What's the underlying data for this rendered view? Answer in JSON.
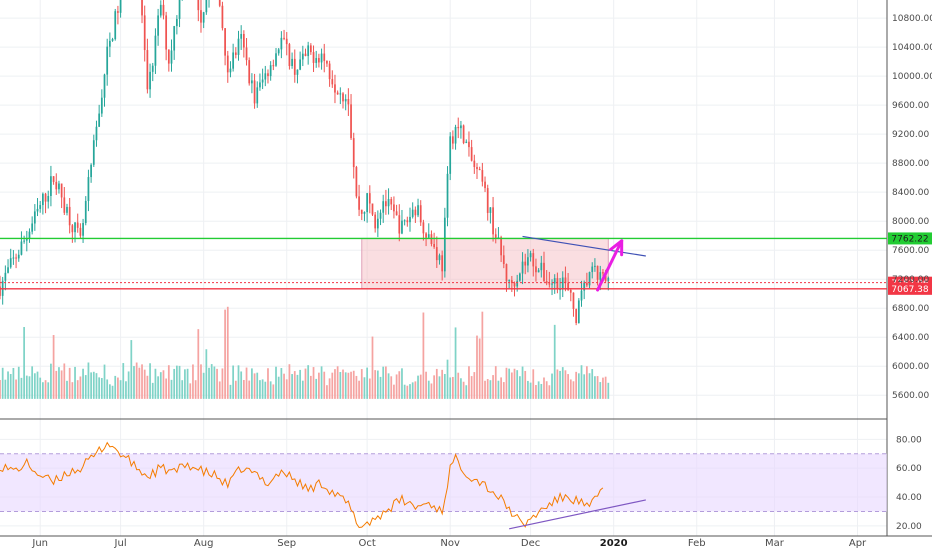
{
  "chart_data": [
    {
      "type": "candlestick",
      "title": "",
      "ylim": [
        5300,
        11050
      ],
      "price_ticks": [
        "5600.00",
        "6000.00",
        "6400.00",
        "6800.00",
        "7200.00",
        "7600.00",
        "8000.00",
        "8400.00",
        "8800.00",
        "9200.00",
        "9600.00",
        "10000.00",
        "10400.00",
        "10800.00"
      ],
      "price_tick_values": [
        5600,
        6000,
        6400,
        6800,
        7200,
        7600,
        8000,
        8400,
        8800,
        9200,
        9600,
        10000,
        10400,
        10800
      ],
      "x_labels": [
        "Jun",
        "Jul",
        "Aug",
        "Sep",
        "Oct",
        "Nov",
        "Dec",
        "2020",
        "Feb",
        "Mar",
        "Apr"
      ],
      "x_label_days": [
        0,
        30,
        61,
        92,
        122,
        153,
        183,
        214,
        245,
        274,
        305
      ],
      "range": {
        "start_day": -15,
        "end_day": 316
      },
      "drawn_to_day": 212,
      "price_path_days": [
        -15,
        -5,
        5,
        15,
        25,
        30,
        35,
        40,
        45,
        48,
        55,
        60,
        65,
        70,
        75,
        80,
        85,
        90,
        95,
        100,
        105,
        110,
        115,
        118,
        120,
        122,
        125,
        128,
        135,
        140,
        145,
        150,
        153,
        155,
        158,
        160,
        165,
        170,
        175,
        180,
        183,
        185,
        190,
        195,
        200,
        205,
        210,
        212
      ],
      "price_path_values": [
        7100,
        7800,
        8600,
        7700,
        10300,
        11100,
        12500,
        9700,
        11000,
        10200,
        11800,
        10800,
        11600,
        10100,
        10500,
        9700,
        10100,
        10500,
        10100,
        10300,
        10300,
        9900,
        9700,
        8300,
        8100,
        8300,
        8000,
        8300,
        7900,
        8200,
        7800,
        7400,
        9100,
        9300,
        9200,
        8900,
        8500,
        7800,
        7100,
        7400,
        7500,
        7400,
        7150,
        7200,
        6700,
        7300,
        7200,
        7152
      ],
      "volume": {
        "min": 0,
        "max": 200,
        "bottom_value": 5550
      },
      "horizontal_levels": [
        {
          "label": "7762.22",
          "value": 7762.22,
          "color": "#22cc33"
        },
        {
          "label": "7152.06",
          "value": 7152.06,
          "color": "#f23645"
        },
        {
          "label": "7067.38",
          "value": 7067.38,
          "color": "#f23645"
        }
      ],
      "support_zone": {
        "from_day": 120,
        "to_day": 212,
        "low": 7067.38,
        "high": 7762.22,
        "color": "#f4b6bd"
      },
      "trendline": {
        "start_day": 180,
        "start_value": 7790,
        "end_day": 226,
        "end_value": 7520,
        "color": "#3f51b5"
      },
      "projection_arrow": {
        "start_day": 208,
        "start_value": 7050,
        "end_day": 217,
        "end_value": 7730,
        "color": "#e91ee3"
      },
      "colors": {
        "up": "#26a69a",
        "down": "#ef5350",
        "up_volume": "#7fd3c7",
        "down_volume": "#f5a3a1"
      }
    },
    {
      "type": "line",
      "name": "RSI",
      "ylim": [
        13,
        92
      ],
      "ticks": [
        "20.00",
        "40.00",
        "60.00",
        "80.00"
      ],
      "tick_values": [
        20,
        40,
        60,
        80
      ],
      "band": {
        "low": 30,
        "high": 70,
        "color": "#e8d7ff"
      },
      "x_days": [
        -15,
        -10,
        -5,
        0,
        5,
        10,
        15,
        20,
        25,
        30,
        35,
        40,
        45,
        50,
        55,
        60,
        65,
        70,
        75,
        80,
        85,
        90,
        95,
        100,
        105,
        110,
        115,
        118,
        120,
        125,
        130,
        135,
        140,
        145,
        150,
        153,
        155,
        160,
        165,
        170,
        175,
        180,
        185,
        190,
        195,
        200,
        205,
        210
      ],
      "y": [
        62,
        58,
        63,
        55,
        50,
        57,
        60,
        68,
        78,
        70,
        62,
        54,
        60,
        57,
        63,
        58,
        55,
        48,
        60,
        56,
        50,
        58,
        52,
        45,
        50,
        42,
        35,
        22,
        20,
        25,
        32,
        38,
        33,
        36,
        30,
        60,
        66,
        55,
        50,
        42,
        32,
        20,
        28,
        35,
        40,
        38,
        32,
        47
      ],
      "trendline": {
        "start_day": 175,
        "start_value": 18,
        "end_day": 226,
        "end_value": 38,
        "color": "#7e57c2"
      },
      "line_color": "#f57c00"
    }
  ]
}
